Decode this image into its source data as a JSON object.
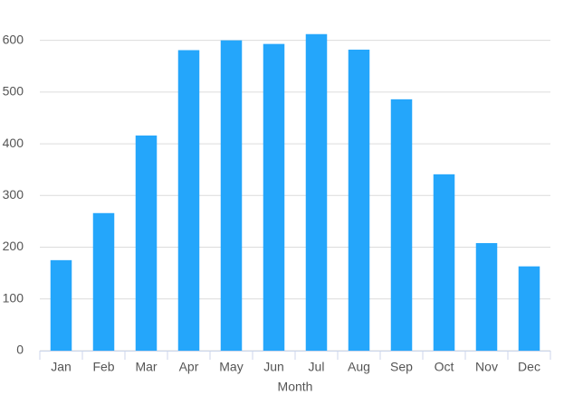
{
  "chart_data": {
    "type": "bar",
    "x_label": "Month",
    "categories": [
      "Jan",
      "Feb",
      "Mar",
      "Apr",
      "May",
      "Jun",
      "Jul",
      "Aug",
      "Sep",
      "Oct",
      "Nov",
      "Dec"
    ],
    "values": [
      175,
      266,
      416,
      581,
      600,
      593,
      612,
      582,
      486,
      341,
      208,
      163
    ],
    "color": "#24a6fb",
    "ylim": [
      0,
      650
    ],
    "yticks": [
      0,
      100,
      200,
      300,
      400,
      500,
      600
    ],
    "grid": true
  }
}
